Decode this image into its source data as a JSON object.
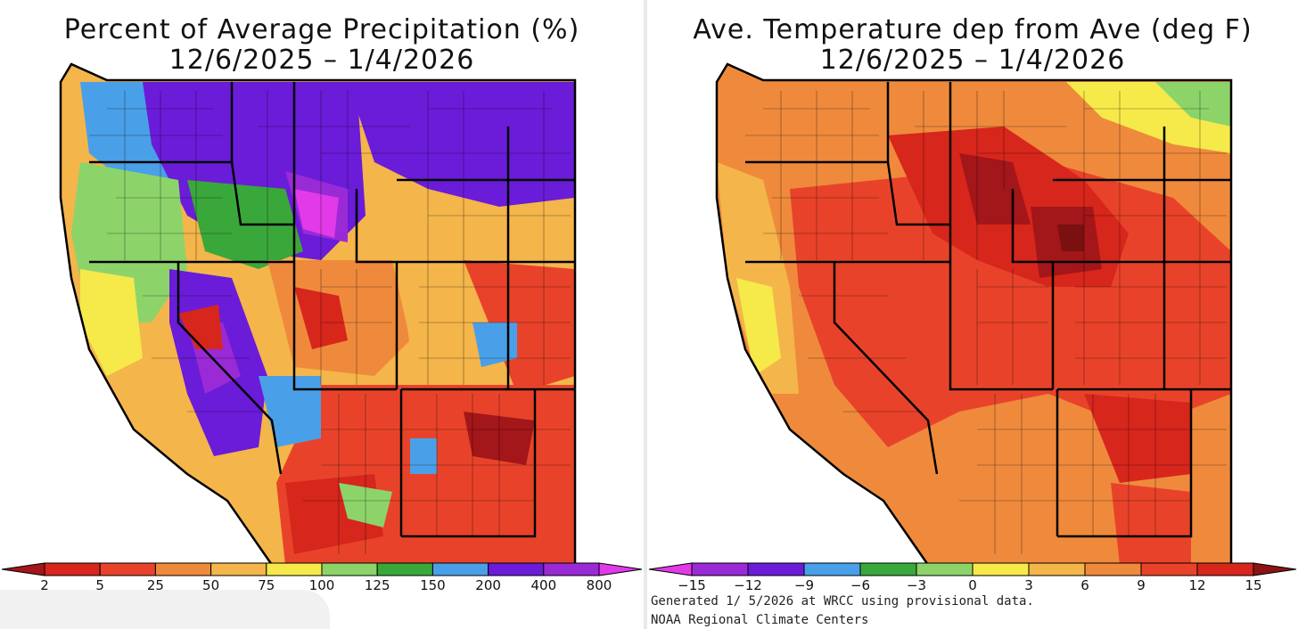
{
  "left_map": {
    "title_line1": "Percent of Average Precipitation (%)",
    "title_line2": "12/6/2025 – 1/4/2026",
    "colorbar": {
      "ticks": [
        "2",
        "5",
        "25",
        "50",
        "75",
        "100",
        "125",
        "150",
        "200",
        "400",
        "800"
      ],
      "colors": [
        "#a3161a",
        "#d7261c",
        "#e8432a",
        "#ef8a3c",
        "#f4b54a",
        "#f6e94a",
        "#8cd46a",
        "#3aa73a",
        "#4aa0e8",
        "#6a1cd8",
        "#9a2ad6",
        "#e23ae8"
      ]
    }
  },
  "right_map": {
    "title_line1": "Ave. Temperature dep from Ave (deg F)",
    "title_line2": "12/6/2025 – 1/4/2026",
    "colorbar": {
      "ticks": [
        "−15",
        "−12",
        "−9",
        "−6",
        "−3",
        "0",
        "3",
        "6",
        "9",
        "12",
        "15"
      ],
      "colors": [
        "#e23ae8",
        "#9a2ad6",
        "#6a1cd8",
        "#4aa0e8",
        "#3aa73a",
        "#8cd46a",
        "#f6e94a",
        "#f4b54a",
        "#ef8a3c",
        "#e8432a",
        "#d7261c",
        "#8a1414"
      ]
    },
    "footer_line1": "Generated 1/ 5/2026 at WRCC using provisional data.",
    "footer_line2": "NOAA Regional Climate Centers"
  }
}
